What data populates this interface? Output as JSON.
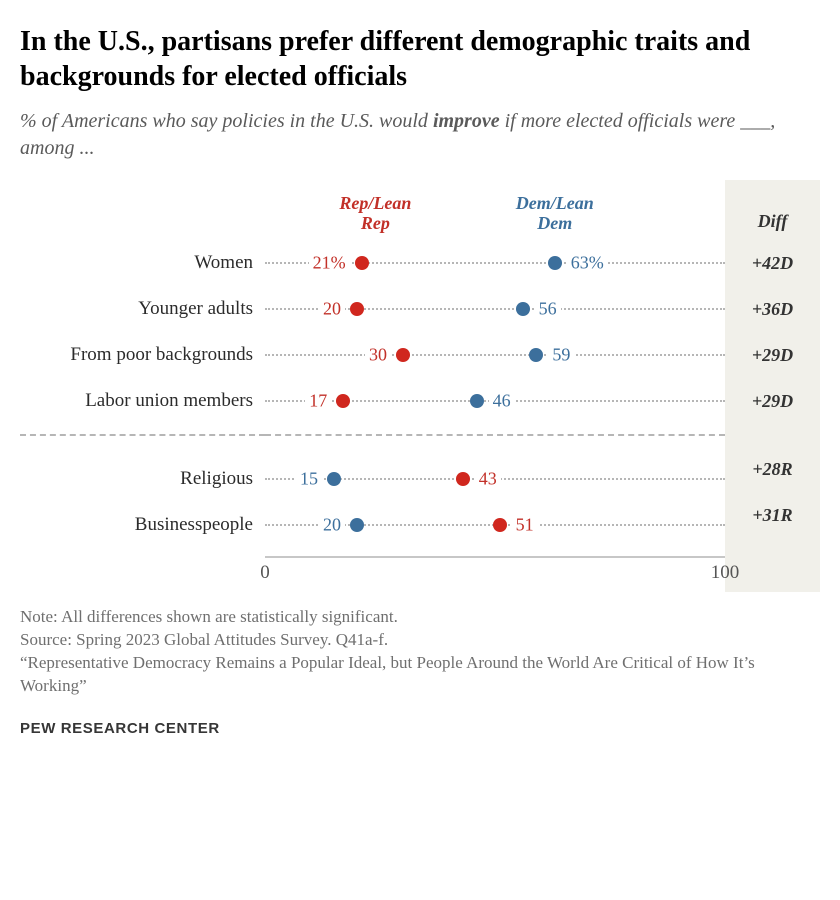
{
  "title": "In the U.S., partisans prefer different demographic traits and backgrounds for elected officials",
  "subtitle_pre": "% of Americans who say policies in the U.S. would ",
  "subtitle_bold": "improve",
  "subtitle_post": " if more elected officials were ___, among ...",
  "colors": {
    "rep": "#d0271e",
    "dem": "#3c6f9c",
    "rep_text": "#c23028",
    "dem_text": "#3c6f9c",
    "diff_text": "#333333"
  },
  "chart": {
    "type": "dotplot",
    "xlim": [
      0,
      100
    ],
    "ticks": [
      0,
      100
    ],
    "dot_radius": 7,
    "legend": {
      "rep": "Rep/Lean Rep",
      "dem": "Dem/Lean Dem",
      "diff": "Diff",
      "rep_pos_pct": 24,
      "dem_pos_pct": 63
    },
    "groups": [
      {
        "rows": [
          {
            "label": "Women",
            "rep": 21,
            "dem": 63,
            "rep_disp": "21%",
            "dem_disp": "63%",
            "diff": "+42D"
          },
          {
            "label": "Younger adults",
            "rep": 20,
            "dem": 56,
            "rep_disp": "20",
            "dem_disp": "56",
            "diff": "+36D"
          },
          {
            "label": "From poor backgrounds",
            "rep": 30,
            "dem": 59,
            "rep_disp": "30",
            "dem_disp": "59",
            "diff": "+29D"
          },
          {
            "label": "Labor union members",
            "rep": 17,
            "dem": 46,
            "rep_disp": "17",
            "dem_disp": "46",
            "diff": "+29D"
          }
        ]
      },
      {
        "rows": [
          {
            "label": "Religious",
            "rep": 43,
            "dem": 15,
            "rep_disp": "43",
            "dem_disp": "15",
            "diff": "+28R"
          },
          {
            "label": "Businesspeople",
            "rep": 51,
            "dem": 20,
            "rep_disp": "51",
            "dem_disp": "20",
            "diff": "+31R"
          }
        ]
      }
    ]
  },
  "notes": [
    "Note: All differences shown are statistically significant.",
    "Source: Spring 2023 Global Attitudes Survey. Q41a-f.",
    "“Representative Democracy Remains a Popular Ideal, but People Around the World Are Critical of How It’s Working”"
  ],
  "attribution": "PEW RESEARCH CENTER"
}
